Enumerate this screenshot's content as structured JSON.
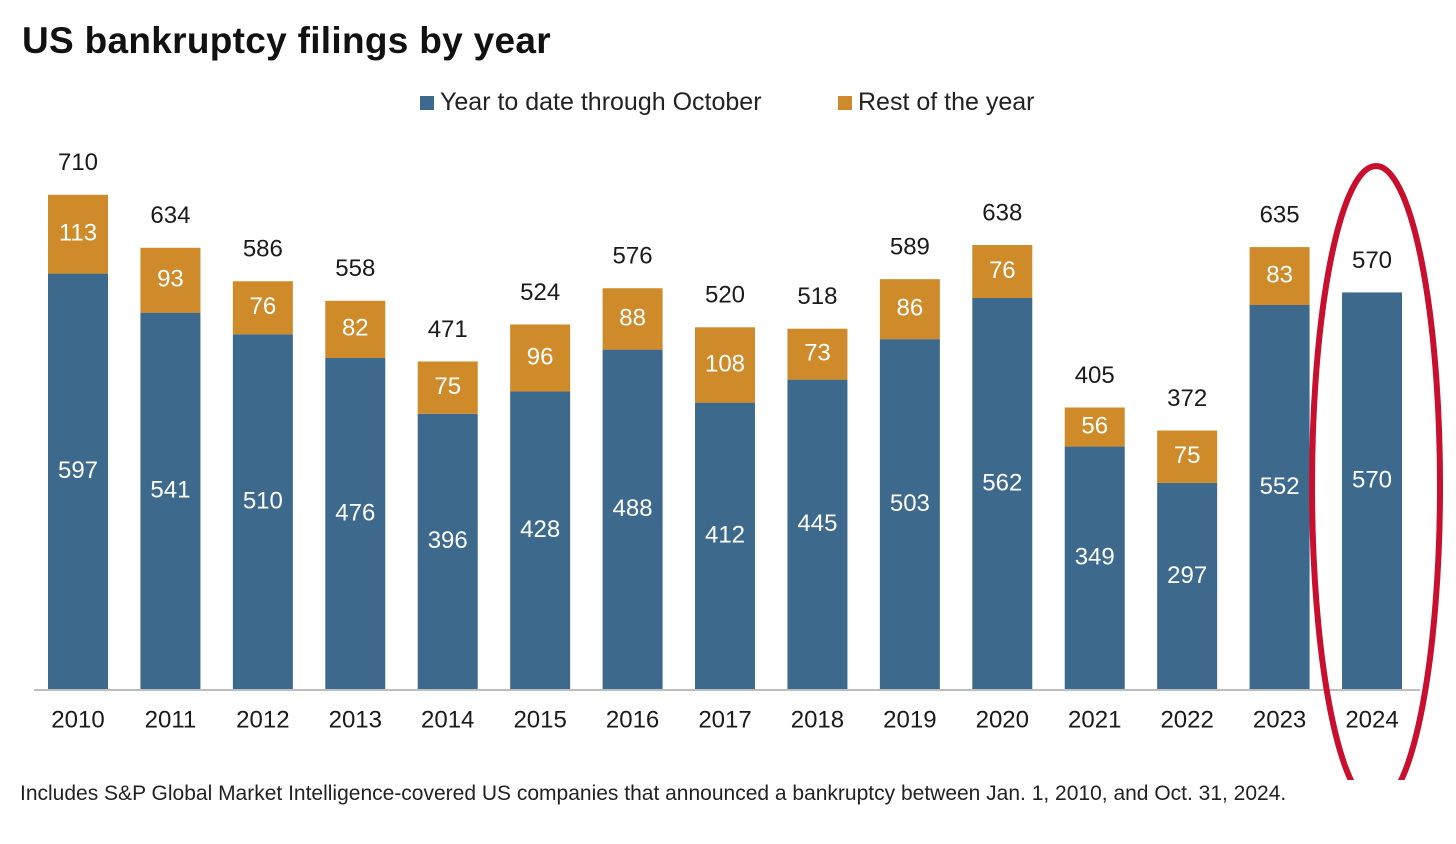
{
  "chart_data": {
    "type": "bar",
    "stacked": true,
    "title": "US bankruptcy filings by year",
    "categories": [
      "2010",
      "2011",
      "2012",
      "2013",
      "2014",
      "2015",
      "2016",
      "2017",
      "2018",
      "2019",
      "2020",
      "2021",
      "2022",
      "2023",
      "2024"
    ],
    "series": [
      {
        "name": "Year to date through October",
        "color": "#3d6a8c",
        "values": [
          597,
          541,
          510,
          476,
          396,
          428,
          488,
          412,
          445,
          503,
          562,
          349,
          297,
          552,
          570
        ]
      },
      {
        "name": "Rest of the year",
        "color": "#cf8a2a",
        "values": [
          113,
          93,
          76,
          82,
          75,
          96,
          88,
          108,
          73,
          86,
          76,
          56,
          75,
          83,
          null
        ]
      }
    ],
    "totals": [
      710,
      634,
      586,
      558,
      471,
      524,
      576,
      520,
      518,
      589,
      638,
      405,
      372,
      635,
      570
    ],
    "legend_position": "top-center",
    "grid": false,
    "ylim": [
      0,
      750
    ],
    "annotation": {
      "type": "ellipse",
      "target_category": "2024",
      "color": "#c8102e"
    },
    "footnote": "Includes S&P Global Market Intelligence-covered US companies that announced a bankruptcy between Jan. 1, 2010, and Oct. 31, 2024."
  }
}
